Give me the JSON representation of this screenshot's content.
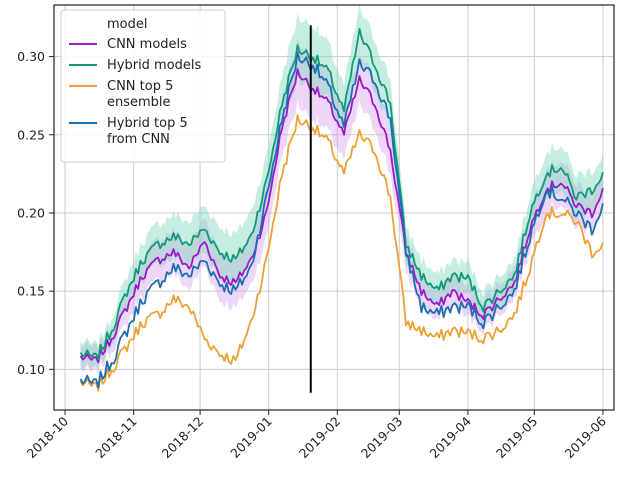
{
  "chart_data": {
    "type": "line",
    "title": "",
    "xlabel": "",
    "ylabel": "",
    "x_range": [
      "2018-09-26",
      "2019-06-06"
    ],
    "ylim": [
      0.074,
      0.333
    ],
    "grid": true,
    "legend": {
      "placement": "top-left",
      "title": "model",
      "entries": [
        {
          "lines": [
            "CNN models"
          ],
          "color": "#9b19c8"
        },
        {
          "lines": [
            "Hybrid models"
          ],
          "color": "#109a78"
        },
        {
          "lines": [
            "CNN top 5",
            "ensemble"
          ],
          "color": "#eda033"
        },
        {
          "lines": [
            "Hybrid top 5",
            "from CNN"
          ],
          "color": "#1a6fb0"
        }
      ]
    },
    "x_ticks": [
      "2018-10",
      "2018-11",
      "2018-12",
      "2019-01",
      "2019-02",
      "2019-03",
      "2019-04",
      "2019-05",
      "2019-06"
    ],
    "y_ticks": [
      "0.10",
      "0.15",
      "0.20",
      "0.25",
      "0.30"
    ],
    "vline": {
      "x": "2019-01-20",
      "y_range": [
        0.085,
        0.32
      ],
      "color": "#000000"
    },
    "series": [
      {
        "name": "CNN models",
        "color": "#9b19c8",
        "band_color": "#d9a3f0",
        "x": [
          "2018-10-08",
          "2018-10-15",
          "2018-10-22",
          "2018-10-29",
          "2018-11-05",
          "2018-11-12",
          "2018-11-19",
          "2018-11-26",
          "2018-12-03",
          "2018-12-10",
          "2018-12-17",
          "2018-12-24",
          "2018-12-31",
          "2019-01-07",
          "2019-01-14",
          "2019-01-21",
          "2019-01-28",
          "2019-02-04",
          "2019-02-11",
          "2019-02-18",
          "2019-02-25",
          "2019-03-04",
          "2019-03-11",
          "2019-03-18",
          "2019-03-25",
          "2019-04-01",
          "2019-04-08",
          "2019-04-15",
          "2019-04-22",
          "2019-04-29",
          "2019-05-06",
          "2019-05-13",
          "2019-05-20",
          "2019-05-27",
          "2019-06-01"
        ],
        "y": [
          0.108,
          0.105,
          0.12,
          0.14,
          0.16,
          0.17,
          0.175,
          0.165,
          0.182,
          0.16,
          0.155,
          0.17,
          0.2,
          0.255,
          0.29,
          0.28,
          0.27,
          0.25,
          0.285,
          0.27,
          0.24,
          0.175,
          0.15,
          0.14,
          0.15,
          0.143,
          0.135,
          0.145,
          0.155,
          0.19,
          0.215,
          0.22,
          0.205,
          0.2,
          0.215
        ],
        "band_halfwidth": [
          0.008,
          0.008,
          0.008,
          0.01,
          0.012,
          0.013,
          0.014,
          0.014,
          0.015,
          0.016,
          0.016,
          0.016,
          0.016,
          0.018,
          0.02,
          0.02,
          0.018,
          0.016,
          0.016,
          0.016,
          0.015,
          0.012,
          0.01,
          0.01,
          0.01,
          0.01,
          0.01,
          0.01,
          0.01,
          0.012,
          0.014,
          0.014,
          0.014,
          0.012,
          0.012
        ]
      },
      {
        "name": "Hybrid models",
        "color": "#109a78",
        "band_color": "#7fd6be",
        "x": [
          "2018-10-08",
          "2018-10-15",
          "2018-10-22",
          "2018-10-29",
          "2018-11-05",
          "2018-11-12",
          "2018-11-19",
          "2018-11-26",
          "2018-12-03",
          "2018-12-10",
          "2018-12-17",
          "2018-12-24",
          "2018-12-31",
          "2019-01-07",
          "2019-01-14",
          "2019-01-21",
          "2019-01-28",
          "2019-02-04",
          "2019-02-11",
          "2019-02-18",
          "2019-02-25",
          "2019-03-04",
          "2019-03-11",
          "2019-03-18",
          "2019-03-25",
          "2019-04-01",
          "2019-04-08",
          "2019-04-15",
          "2019-04-22",
          "2019-04-29",
          "2019-05-06",
          "2019-05-13",
          "2019-05-20",
          "2019-05-27",
          "2019-06-01"
        ],
        "y": [
          0.11,
          0.107,
          0.125,
          0.15,
          0.17,
          0.18,
          0.185,
          0.18,
          0.19,
          0.175,
          0.17,
          0.185,
          0.22,
          0.27,
          0.305,
          0.3,
          0.29,
          0.265,
          0.315,
          0.295,
          0.27,
          0.18,
          0.16,
          0.15,
          0.16,
          0.158,
          0.14,
          0.15,
          0.16,
          0.2,
          0.225,
          0.23,
          0.21,
          0.215,
          0.225
        ],
        "band_halfwidth": [
          0.008,
          0.008,
          0.008,
          0.01,
          0.012,
          0.013,
          0.014,
          0.014,
          0.015,
          0.016,
          0.016,
          0.016,
          0.016,
          0.018,
          0.02,
          0.02,
          0.018,
          0.016,
          0.016,
          0.016,
          0.015,
          0.012,
          0.01,
          0.01,
          0.01,
          0.01,
          0.01,
          0.01,
          0.01,
          0.012,
          0.014,
          0.014,
          0.014,
          0.012,
          0.012
        ]
      },
      {
        "name": "CNN top 5 ensemble",
        "color": "#eda033",
        "x": [
          "2018-10-08",
          "2018-10-15",
          "2018-10-22",
          "2018-10-29",
          "2018-11-05",
          "2018-11-12",
          "2018-11-19",
          "2018-11-26",
          "2018-12-03",
          "2018-12-10",
          "2018-12-17",
          "2018-12-24",
          "2018-12-31",
          "2019-01-07",
          "2019-01-14",
          "2019-01-21",
          "2019-01-28",
          "2019-02-04",
          "2019-02-11",
          "2019-02-18",
          "2019-02-25",
          "2019-03-04",
          "2019-03-11",
          "2019-03-18",
          "2019-03-25",
          "2019-04-01",
          "2019-04-08",
          "2019-04-15",
          "2019-04-22",
          "2019-04-29",
          "2019-05-06",
          "2019-05-13",
          "2019-05-20",
          "2019-05-27",
          "2019-06-01"
        ],
        "y": [
          0.092,
          0.088,
          0.1,
          0.115,
          0.13,
          0.135,
          0.145,
          0.14,
          0.12,
          0.11,
          0.105,
          0.13,
          0.17,
          0.225,
          0.26,
          0.255,
          0.245,
          0.225,
          0.25,
          0.24,
          0.21,
          0.13,
          0.125,
          0.12,
          0.125,
          0.123,
          0.12,
          0.125,
          0.135,
          0.165,
          0.2,
          0.2,
          0.195,
          0.175,
          0.18
        ]
      },
      {
        "name": "Hybrid top 5 from CNN",
        "color": "#1a6fb0",
        "x": [
          "2018-10-08",
          "2018-10-15",
          "2018-10-22",
          "2018-10-29",
          "2018-11-05",
          "2018-11-12",
          "2018-11-19",
          "2018-11-26",
          "2018-12-03",
          "2018-12-10",
          "2018-12-17",
          "2018-12-24",
          "2018-12-31",
          "2019-01-07",
          "2019-01-14",
          "2019-01-21",
          "2019-01-28",
          "2019-02-04",
          "2019-02-11",
          "2019-02-18",
          "2019-02-25",
          "2019-03-04",
          "2019-03-11",
          "2019-03-18",
          "2019-03-25",
          "2019-04-01",
          "2019-04-08",
          "2019-04-15",
          "2019-04-22",
          "2019-04-29",
          "2019-05-06",
          "2019-05-13",
          "2019-05-20",
          "2019-05-27",
          "2019-06-01"
        ],
        "y": [
          0.093,
          0.09,
          0.105,
          0.125,
          0.145,
          0.155,
          0.165,
          0.16,
          0.17,
          0.155,
          0.15,
          0.165,
          0.21,
          0.26,
          0.3,
          0.295,
          0.28,
          0.255,
          0.295,
          0.285,
          0.26,
          0.175,
          0.14,
          0.135,
          0.14,
          0.14,
          0.13,
          0.14,
          0.15,
          0.185,
          0.215,
          0.21,
          0.2,
          0.19,
          0.205
        ]
      }
    ]
  }
}
